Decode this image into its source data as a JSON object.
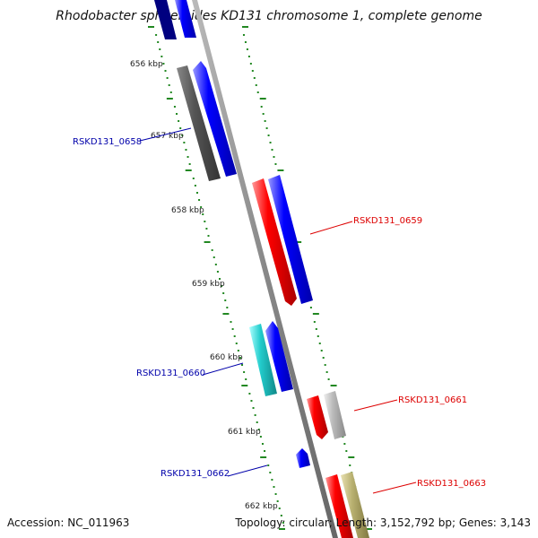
{
  "title": "Rhodobacter sphaeroides KD131 chromosome 1, complete genome",
  "accession": "Accession: NC_011963",
  "summary": "Topology: circular; Length: 3,152,792 bp; Genes: 3,143",
  "tick_labels": [
    "656 kbp",
    "657 kbp",
    "658 kbp",
    "659 kbp",
    "660 kbp",
    "661 kbp",
    "662 kbp"
  ],
  "gene_labels": [
    {
      "text": "RSKD131_0658",
      "color": "#0000aa"
    },
    {
      "text": "RSKD131_0659",
      "color": "#dd0000"
    },
    {
      "text": "RSKD131_0660",
      "color": "#0000aa"
    },
    {
      "text": "RSKD131_0661",
      "color": "#dd0000"
    },
    {
      "text": "RSKD131_0662",
      "color": "#0000aa"
    },
    {
      "text": "RSKD131_0663",
      "color": "#dd0000"
    }
  ],
  "colors": {
    "forward_cds": "#0000ff",
    "reverse_cds": "#ff0000",
    "backbone": "#888888",
    "ticks": "#228822",
    "dark_gray_feature": "#555555",
    "light_gray_feature": "#bbbbbb",
    "cyan_feature": "#22cccc",
    "olive_feature": "#b8b070"
  }
}
